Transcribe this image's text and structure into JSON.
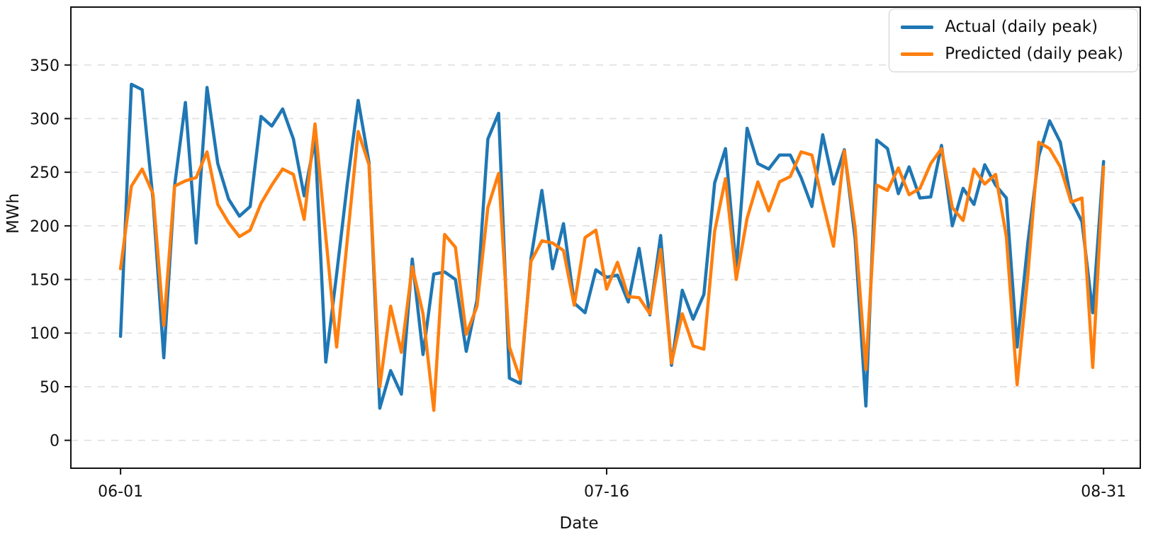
{
  "chart_data": {
    "type": "line",
    "title": "",
    "xlabel": "Date",
    "ylabel": "MWh",
    "grid": "horizontal-dashed",
    "legend_position": "upper right",
    "x_axis": {
      "tick_labels": [
        "06-01",
        "07-16",
        "08-31"
      ],
      "tick_days": [
        0,
        45,
        91
      ],
      "n_points": 92,
      "start_date": "06-01",
      "end_date": "08-31",
      "xlim_days": [
        -4.6,
        94.4
      ]
    },
    "y_axis": {
      "ticks": [
        0,
        50,
        100,
        150,
        200,
        250,
        300,
        350
      ],
      "ylim": [
        -26,
        404
      ]
    },
    "series": [
      {
        "name": "Actual (daily peak)",
        "color": "#1f77b4",
        "values": [
          97,
          332,
          327,
          225,
          77,
          237,
          315,
          184,
          329,
          258,
          225,
          209,
          218,
          302,
          293,
          309,
          281,
          228,
          281,
          73,
          155,
          240,
          317,
          259,
          30,
          65,
          43,
          169,
          80,
          155,
          157,
          150,
          83,
          131,
          281,
          305,
          58,
          53,
          170,
          233,
          160,
          202,
          128,
          119,
          159,
          152,
          154,
          129,
          179,
          117,
          191,
          70,
          140,
          113,
          136,
          240,
          272,
          159,
          291,
          258,
          253,
          266,
          266,
          245,
          218,
          285,
          239,
          271,
          188,
          32,
          280,
          272,
          230,
          255,
          226,
          227,
          275,
          200,
          235,
          220,
          257,
          238,
          226,
          87,
          185,
          265,
          298,
          278,
          224,
          204,
          119,
          260
        ]
      },
      {
        "name": "Predicted (daily peak)",
        "color": "#ff7f0e",
        "values": [
          160,
          237,
          253,
          230,
          107,
          237,
          242,
          245,
          269,
          220,
          203,
          190,
          196,
          221,
          238,
          253,
          248,
          206,
          295,
          190,
          87,
          188,
          288,
          257,
          50,
          125,
          82,
          162,
          118,
          28,
          192,
          180,
          99,
          125,
          217,
          249,
          87,
          57,
          167,
          186,
          184,
          177,
          126,
          189,
          196,
          141,
          166,
          134,
          133,
          118,
          178,
          72,
          118,
          88,
          85,
          195,
          244,
          150,
          207,
          241,
          214,
          241,
          246,
          269,
          266,
          222,
          181,
          270,
          198,
          66,
          238,
          233,
          254,
          229,
          235,
          258,
          272,
          217,
          205,
          253,
          239,
          248,
          190,
          52,
          155,
          278,
          272,
          255,
          222,
          226,
          68,
          255
        ]
      }
    ]
  }
}
